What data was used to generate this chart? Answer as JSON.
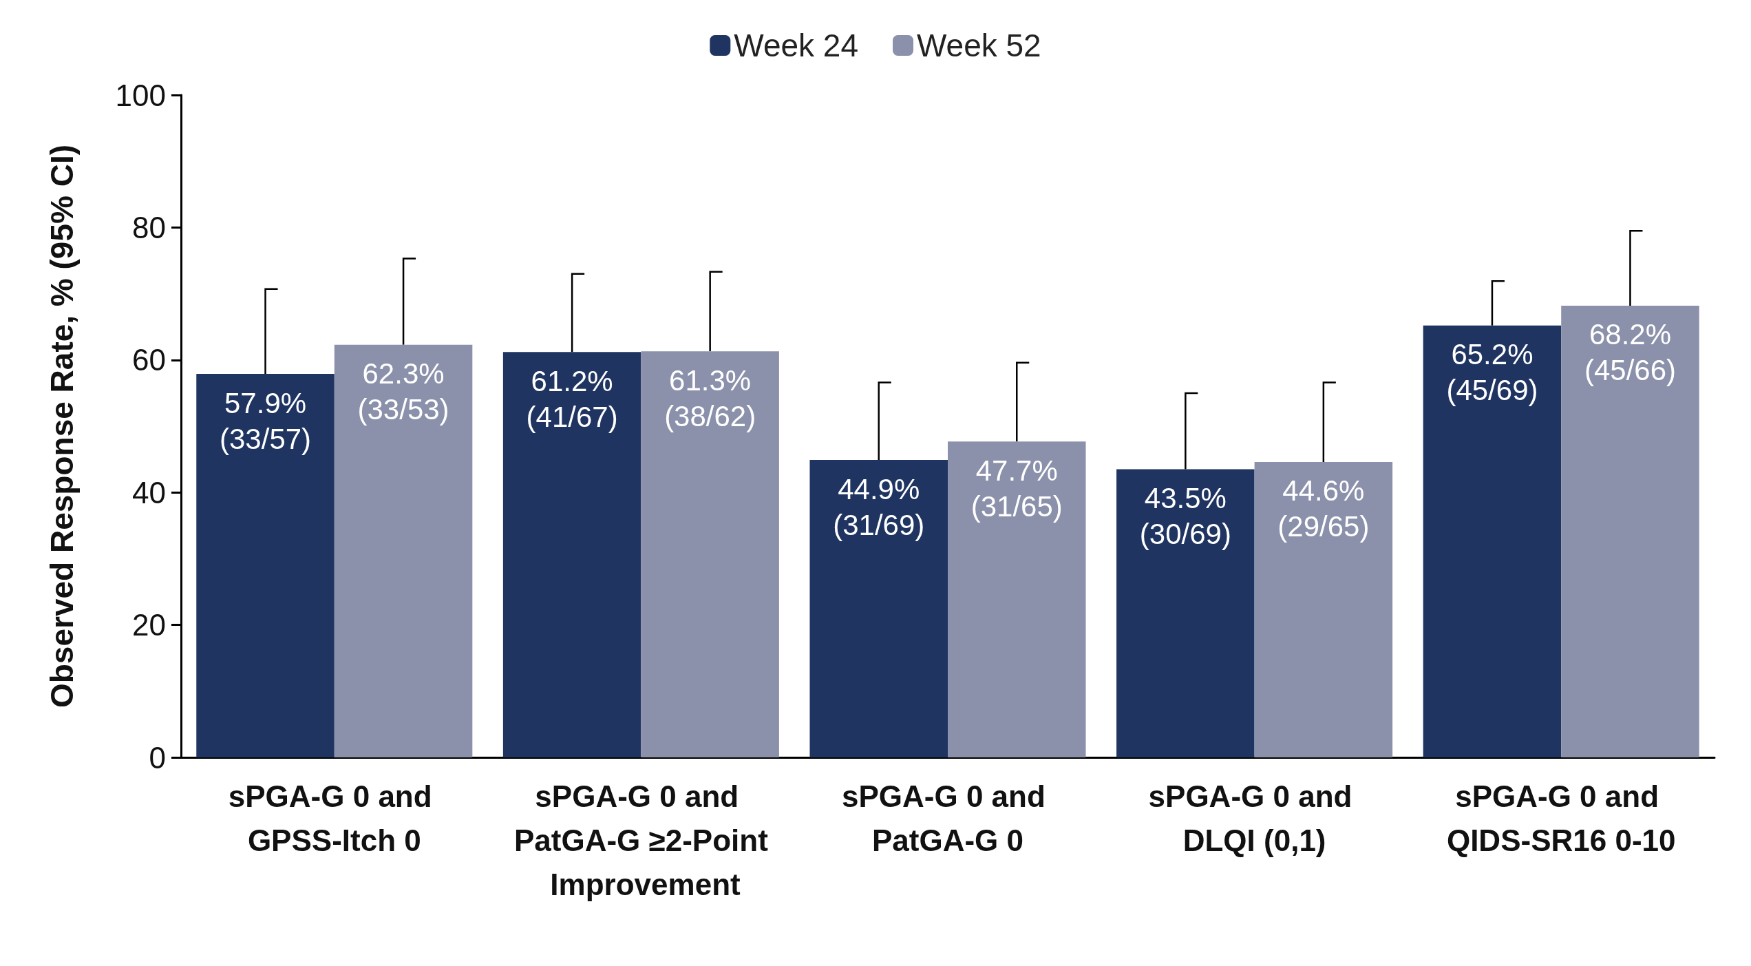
{
  "chart_data": {
    "type": "bar",
    "ylabel": "Observed Response Rate, % (95% CI)",
    "categories": [
      "sPGA-G 0 and GPSS-Itch 0",
      "sPGA-G 0 and PatGA-G ≥2-Point Improvement",
      "sPGA-G 0 and PatGA-G 0",
      "sPGA-G 0 and DLQI (0,1)",
      "sPGA-G 0 and QIDS-SR16 0-10"
    ],
    "series": [
      {
        "name": "Week 24",
        "color": "#1f3461",
        "values": [
          57.9,
          61.2,
          44.9,
          43.5,
          65.2
        ],
        "errors": [
          [
            57.9,
            70.7
          ],
          [
            61.2,
            73.0
          ],
          [
            44.9,
            56.6
          ],
          [
            43.5,
            55.0
          ],
          [
            65.2,
            71.9
          ]
        ],
        "value_labels": [
          "57.9% (33/57)",
          "61.2% (41/67)",
          "44.9% (31/69)",
          "43.5% (30/69)",
          "65.2% (45/69)"
        ]
      },
      {
        "name": "Week 52",
        "color": "#8b91ab",
        "values": [
          62.3,
          61.3,
          47.7,
          44.6,
          68.2
        ],
        "errors": [
          [
            62.3,
            75.3
          ],
          [
            61.3,
            73.3
          ],
          [
            47.7,
            59.6
          ],
          [
            44.6,
            56.6
          ],
          [
            68.2,
            79.5
          ]
        ],
        "value_labels": [
          "62.3% (33/53)",
          "61.3% (38/62)",
          "47.7% (31/65)",
          "44.6% (29/65)",
          "68.2% (45/66)"
        ]
      }
    ],
    "ylim": [
      0,
      100
    ],
    "yticks": [
      0,
      20,
      40,
      60,
      80,
      100
    ],
    "grid": false,
    "legend": "top"
  }
}
